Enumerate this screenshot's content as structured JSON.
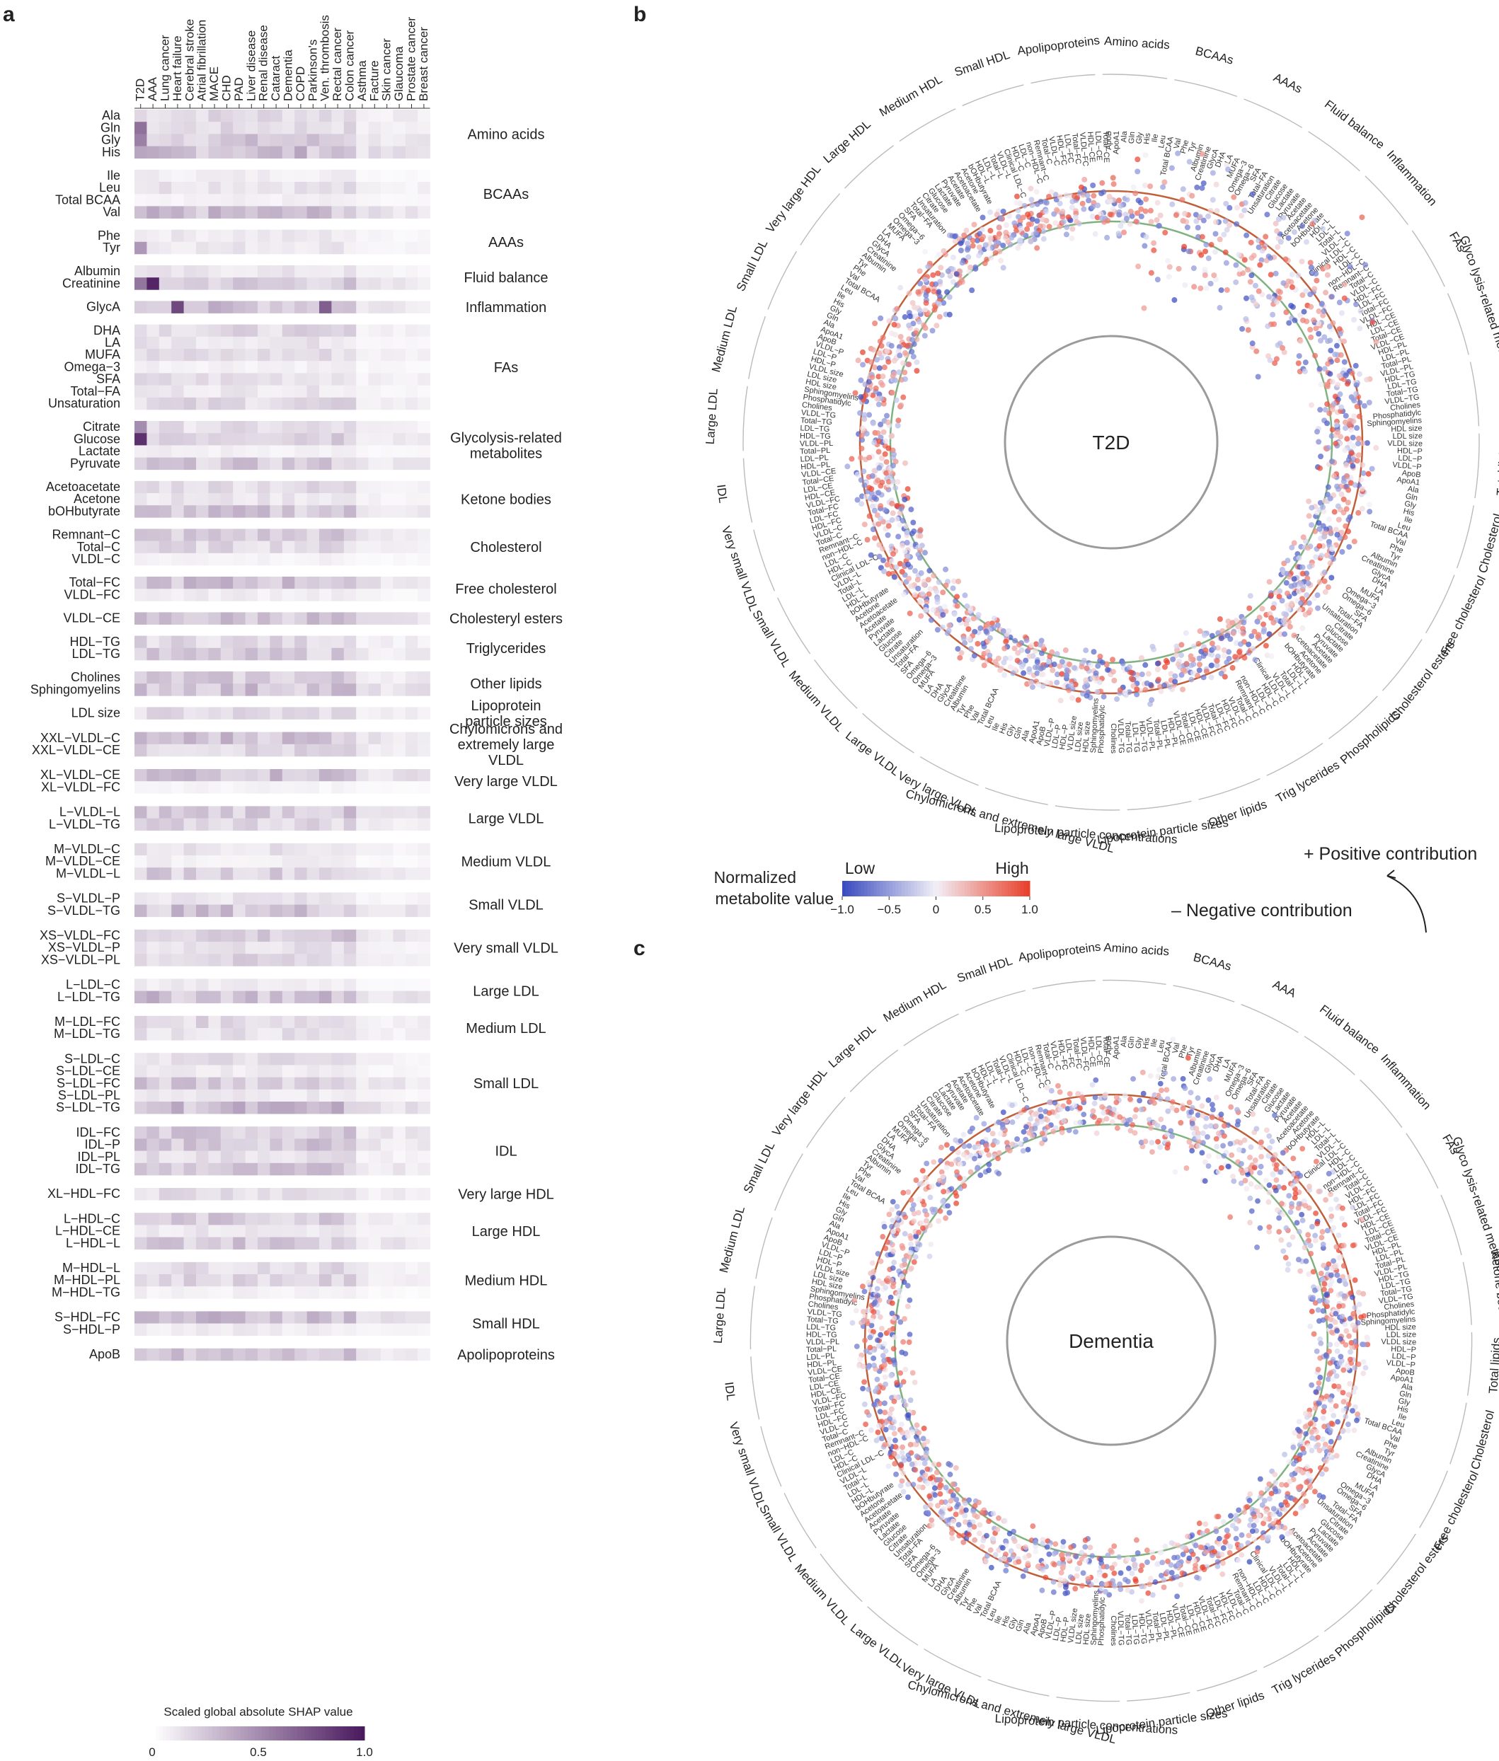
{
  "panel_labels": {
    "a": "a",
    "b": "b",
    "c": "c"
  },
  "chart_data": [
    {
      "type": "heatmap",
      "panel": "a",
      "diseases": [
        "T2D",
        "AAA",
        "Lung cancer",
        "Heart failure",
        "Cerebral stroke",
        "Atrial fibrillation",
        "MACE",
        "CHD",
        "PAD",
        "Liver disease",
        "Renal disease",
        "Cataract",
        "Dementia",
        "COPD",
        "Parkinson's",
        "Ven. thrombosis",
        "Rectal cancer",
        "Colon cancer",
        "Asthma",
        "Facture",
        "Skin cancer",
        "Glaucoma",
        "Prostate cancer",
        "Breast cancer"
      ],
      "groups": [
        {
          "name": "Amino acids",
          "rows": [
            "Ala",
            "Gln",
            "Gly",
            "His"
          ]
        },
        {
          "name": "BCAAs",
          "rows": [
            "Ile",
            "Leu",
            "Total BCAA",
            "Val"
          ]
        },
        {
          "name": "AAAs",
          "rows": [
            "Phe",
            "Tyr"
          ]
        },
        {
          "name": "Fluid balance",
          "rows": [
            "Albumin",
            "Creatinine"
          ]
        },
        {
          "name": "Inflammation",
          "rows": [
            "GlycA"
          ]
        },
        {
          "name": "FAs",
          "rows": [
            "DHA",
            "LA",
            "MUFA",
            "Omega−3",
            "SFA",
            "Total−FA",
            "Unsaturation"
          ]
        },
        {
          "name": "Glycolysis-related metabolites",
          "rows": [
            "Citrate",
            "Glucose",
            "Lactate",
            "Pyruvate"
          ]
        },
        {
          "name": "Ketone bodies",
          "rows": [
            "Acetoacetate",
            "Acetone",
            "bOHbutyrate"
          ]
        },
        {
          "name": "Cholesterol",
          "rows": [
            "Remnant−C",
            "Total−C",
            "VLDL−C"
          ]
        },
        {
          "name": "Free cholesterol",
          "rows": [
            "Total−FC",
            "VLDL−FC"
          ]
        },
        {
          "name": "Cholesteryl esters",
          "rows": [
            "VLDL−CE"
          ]
        },
        {
          "name": "Triglycerides",
          "rows": [
            "HDL−TG",
            "LDL−TG"
          ]
        },
        {
          "name": "Other lipids",
          "rows": [
            "Cholines",
            "Sphingomyelins"
          ]
        },
        {
          "name": "Lipoprotein particle sizes",
          "rows": [
            "LDL size"
          ]
        },
        {
          "name": "Chylomicrons and extremely large VLDL",
          "rows": [
            "XXL−VLDL−C",
            "XXL−VLDL−CE"
          ]
        },
        {
          "name": "Very large VLDL",
          "rows": [
            "XL−VLDL−CE",
            "XL−VLDL−FC"
          ]
        },
        {
          "name": "Large VLDL",
          "rows": [
            "L−VLDL−L",
            "L−VLDL−TG"
          ]
        },
        {
          "name": "Medium VLDL",
          "rows": [
            "M−VLDL−C",
            "M−VLDL−CE",
            "M−VLDL−L"
          ]
        },
        {
          "name": "Small VLDL",
          "rows": [
            "S−VLDL−P",
            "S−VLDL−TG"
          ]
        },
        {
          "name": "Very small VLDL",
          "rows": [
            "XS−VLDL−FC",
            "XS−VLDL−P",
            "XS−VLDL−PL"
          ]
        },
        {
          "name": "Large LDL",
          "rows": [
            "L−LDL−C",
            "L−LDL−TG"
          ]
        },
        {
          "name": "Medium LDL",
          "rows": [
            "M−LDL−FC",
            "M−LDL−TG"
          ]
        },
        {
          "name": "Small LDL",
          "rows": [
            "S−LDL−C",
            "S−LDL−CE",
            "S−LDL−FC",
            "S−LDL−PL",
            "S−LDL−TG"
          ]
        },
        {
          "name": "IDL",
          "rows": [
            "IDL−FC",
            "IDL−P",
            "IDL−PL",
            "IDL−TG"
          ]
        },
        {
          "name": "Very large HDL",
          "rows": [
            "XL−HDL−FC"
          ]
        },
        {
          "name": "Large HDL",
          "rows": [
            "L−HDL−C",
            "L−HDL−CE",
            "L−HDL−L"
          ]
        },
        {
          "name": "Medium HDL",
          "rows": [
            "M−HDL−L",
            "M−HDL−PL",
            "M−HDL−TG"
          ]
        },
        {
          "name": "Small HDL",
          "rows": [
            "S−HDL−FC",
            "S−HDL−P"
          ]
        },
        {
          "name": "Apolipoproteins",
          "rows": [
            "ApoB"
          ]
        }
      ],
      "highlights": [
        {
          "row": "Gln",
          "disease": "T2D",
          "value": 0.62
        },
        {
          "row": "Gly",
          "disease": "T2D",
          "value": 0.55
        },
        {
          "row": "Tyr",
          "disease": "T2D",
          "value": 0.45
        },
        {
          "row": "Creatinine",
          "disease": "AAA",
          "value": 0.95
        },
        {
          "row": "Creatinine",
          "disease": "T2D",
          "value": 0.6
        },
        {
          "row": "GlycA",
          "disease": "Heart failure",
          "value": 0.8
        },
        {
          "row": "GlycA",
          "disease": "Ven. thrombosis",
          "value": 0.7
        },
        {
          "row": "Glucose",
          "disease": "T2D",
          "value": 0.9
        },
        {
          "row": "Citrate",
          "disease": "T2D",
          "value": 0.5
        }
      ],
      "colorbar": {
        "title": "Scaled global absolute SHAP value",
        "ticks": [
          "0",
          "0.5",
          "1.0"
        ],
        "range": [
          0,
          1
        ],
        "low_color": "#ffffff",
        "high_color": "#4a1a5e"
      }
    },
    {
      "type": "scatter",
      "panel": "b",
      "layout": "circular",
      "center_label": "T2D",
      "sectors": [
        "Apolipoproteins",
        "Amino acids",
        "BCAAs",
        "AAAs",
        "Fluid balance",
        "Inflammation",
        "FAs",
        "Glyco lysis-related metabolites",
        "Ketone bodies",
        "Total lipids",
        "Cholesterol",
        "Free cholesterol",
        "Cholesterol esters",
        "Phospholipids",
        "Trig lycerides",
        "Other lipids",
        "Lipoprotein particle sizes",
        "Lipoprotein particle concentrations",
        "Chylomicrons and extremely large VLDL",
        "Very large VLDL",
        "Large VLDL",
        "Medium VLDL",
        "Small VLDL",
        "Very small VLDL",
        "IDL",
        "Large LDL",
        "Medium LDL",
        "Small LDL",
        "Very large HDL",
        "Large HDL",
        "Medium HDL",
        "Small HDL"
      ],
      "metabolite_labels": [
        "ApoB",
        "ApoA1",
        "Ala",
        "Gln",
        "Gly",
        "His",
        "Ile",
        "Leu",
        "Total BCAA",
        "Val",
        "Phe",
        "Tyr",
        "Albumin",
        "Creatinine",
        "GlycA",
        "DHA",
        "LA",
        "MUFA",
        "Omega−3",
        "Omega−6",
        "SFA",
        "Total−FA",
        "Unsaturation",
        "Citrate",
        "Glucose",
        "Lactate",
        "Pyruvate",
        "Acetate",
        "Acetoacetate",
        "Acetone",
        "bOHbutyrate",
        "HDL−L",
        "LDL−L",
        "Total−L",
        "VLDL−L",
        "Clinical LDL−C",
        "HDL−C",
        "LDL−C",
        "non−HDL−C",
        "Remnant−C",
        "Total−C",
        "VLDL−C",
        "HDL−FC",
        "LDL−FC",
        "Total−FC",
        "VLDL−FC",
        "HDL−CE",
        "LDL−CE",
        "Total−CE",
        "VLDL−CE",
        "HDL−PL",
        "LDL−PL",
        "Total−PL",
        "VLDL−PL",
        "HDL−TG",
        "LDL−TG",
        "Total−TG",
        "VLDL−TG",
        "Cholines",
        "Phosphatidylc",
        "Sphingomyelins",
        "HDL size",
        "LDL size",
        "VLDL size",
        "HDL−P",
        "LDL−P",
        "VLDL−P"
      ],
      "colorbar": {
        "title": "Normalized metabolite value",
        "low_label": "Low",
        "high_label": "High",
        "ticks": [
          "−1.0",
          "−0.5",
          "0",
          "0.5",
          "1.0"
        ],
        "range": [
          -1,
          1
        ],
        "low_color": "#3b4cc0",
        "mid_color": "#f2f0f7",
        "high_color": "#e8412c"
      },
      "series": [
        {
          "name": "Positive contribution"
        },
        {
          "name": "Negative contribution"
        }
      ],
      "reference_rings": {
        "positive_color": "#c0603a",
        "zero_color": "#7fb27f"
      }
    },
    {
      "type": "scatter",
      "panel": "c",
      "layout": "circular",
      "center_label": "Dementia",
      "sectors": [
        "Apolipoproteins",
        "Amino acids",
        "BCAAs",
        "AAA",
        "Fluid balance",
        "Inflammation",
        "FAs",
        "Glyco lysis-related metabolites",
        "Ketone bodies",
        "Total lipids",
        "Cholesterol",
        "Free cholesterol",
        "Cholesterol esters",
        "Phospholipids",
        "Trig lycerides",
        "Other lipids",
        "Lipoprotein particle sizes",
        "Lipoprotein particle concentrations",
        "Chylomicrons and extremely large VLDL",
        "Very large VLDL",
        "Large VLDL",
        "Medium VLDL",
        "Small VLDL",
        "Very small VLDL",
        "IDL",
        "Large LDL",
        "Medium LDL",
        "Small LDL",
        "Very large HDL",
        "Large HDL",
        "Medium HDL",
        "Small HDL"
      ]
    }
  ],
  "legend_b": {
    "positive": "+ Positive contribution",
    "negative": "– Negative contribution"
  },
  "colors": {
    "heat_high": "#4a1a5e",
    "blue": "#3b4cc0",
    "red": "#e8412c",
    "ring_outer": "#c0603a",
    "ring_mid": "#7fb27f",
    "ring_inner": "#9b9b9b"
  }
}
